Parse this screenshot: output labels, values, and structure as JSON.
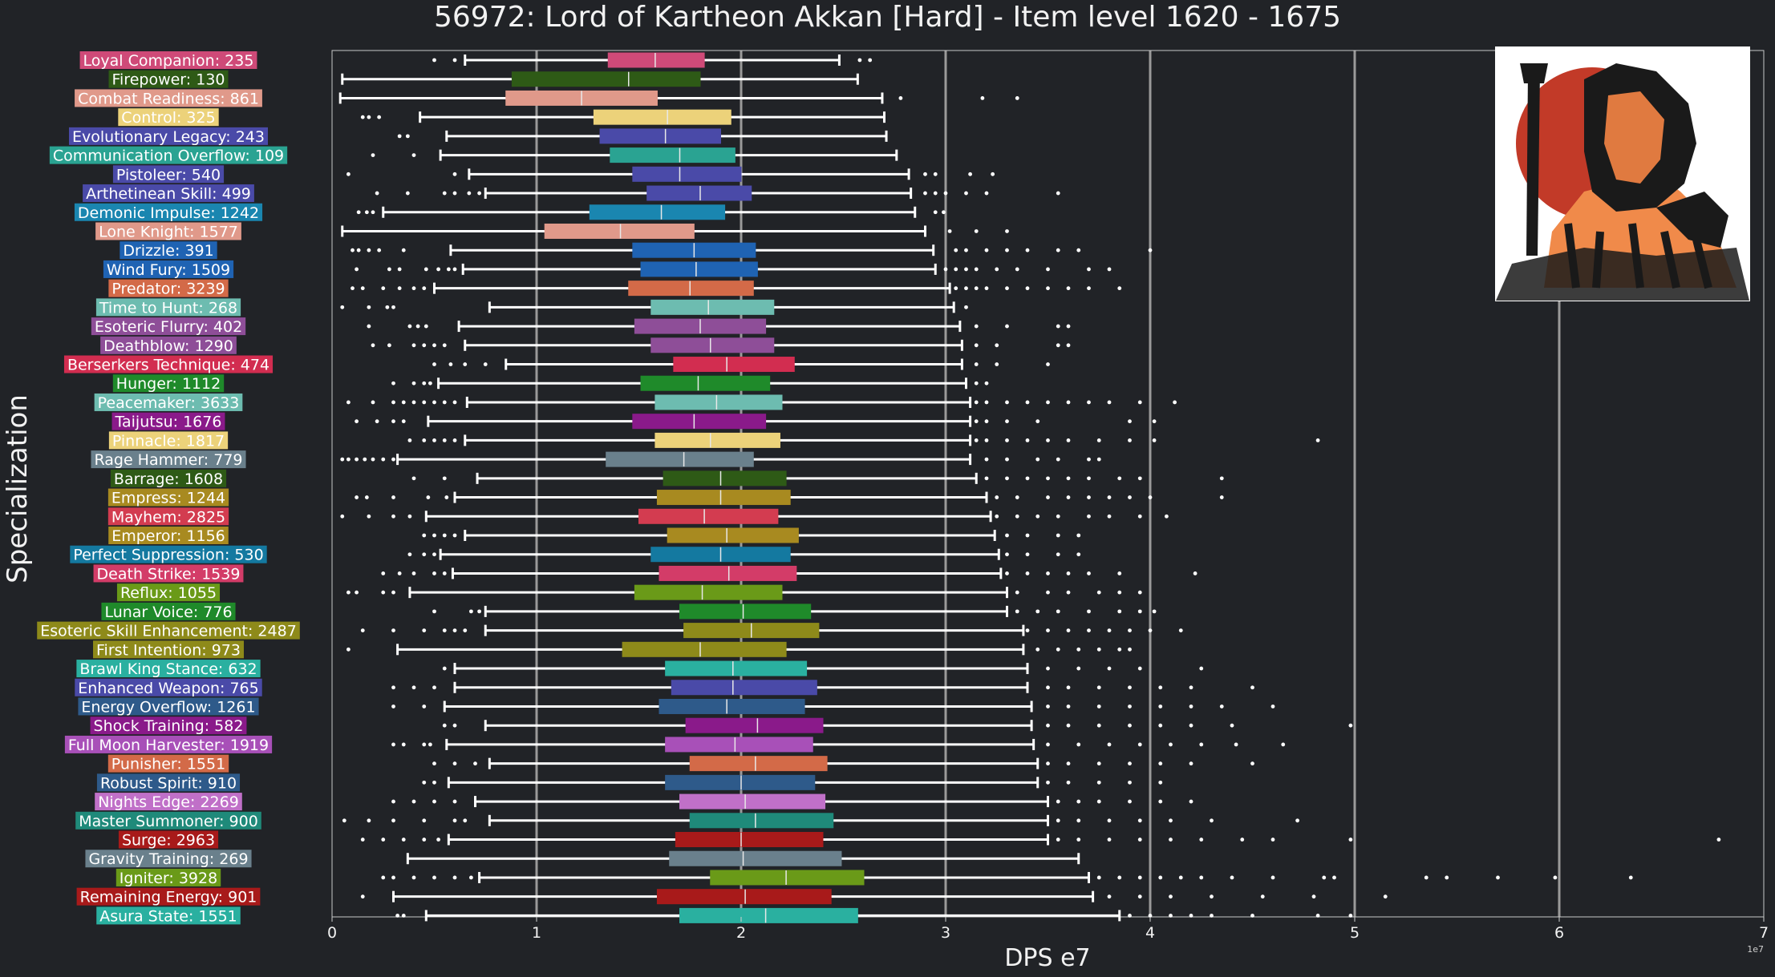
{
  "chart_data": {
    "type": "box",
    "title": "56972: Lord of Kartheon Akkan [Hard] - Item level 1620 - 1675",
    "xlabel": "DPS e7",
    "ylabel": "Specialization",
    "x_scale_note": "1e7",
    "xlim": [
      0,
      7
    ],
    "xticks": [
      "0",
      "1",
      "2",
      "3",
      "4",
      "5",
      "6",
      "7"
    ],
    "grid": "vertical",
    "series": [
      {
        "name": "Loyal Companion: 235",
        "color": "#cf4a78",
        "whislo": 0.65,
        "q1": 1.35,
        "median": 1.58,
        "q3": 1.82,
        "whishi": 2.48,
        "outliers": [
          0.5,
          0.6,
          2.58,
          2.63
        ]
      },
      {
        "name": "Firepower: 130",
        "color": "#2e5a16",
        "whislo": 0.05,
        "q1": 0.88,
        "median": 1.45,
        "q3": 1.8,
        "whishi": 2.57,
        "outliers": []
      },
      {
        "name": "Combat Readiness: 861",
        "color": "#e0998a",
        "whislo": 0.04,
        "q1": 0.85,
        "median": 1.22,
        "q3": 1.59,
        "whishi": 2.69,
        "outliers": [
          2.78,
          3.18,
          3.35
        ]
      },
      {
        "name": "Control: 325",
        "color": "#ecd27a",
        "whislo": 0.43,
        "q1": 1.28,
        "median": 1.64,
        "q3": 1.95,
        "whishi": 2.7,
        "outliers": [
          0.15,
          0.18,
          0.23
        ]
      },
      {
        "name": "Evolutionary Legacy: 243",
        "color": "#4a4aa8",
        "whislo": 0.56,
        "q1": 1.31,
        "median": 1.63,
        "q3": 1.9,
        "whishi": 2.71,
        "outliers": [
          0.33,
          0.37
        ]
      },
      {
        "name": "Communication Overflow: 109",
        "color": "#2aa392",
        "whislo": 0.53,
        "q1": 1.36,
        "median": 1.7,
        "q3": 1.97,
        "whishi": 2.76,
        "outliers": [
          0.2,
          0.4
        ]
      },
      {
        "name": "Pistoleer: 540",
        "color": "#4a4aa8",
        "whislo": 0.67,
        "q1": 1.47,
        "median": 1.7,
        "q3": 2.0,
        "whishi": 2.82,
        "outliers": [
          0.08,
          0.6,
          2.9,
          2.95,
          3.12,
          3.23
        ]
      },
      {
        "name": "Arthetinean Skill: 499",
        "color": "#4a4aa8",
        "whislo": 0.75,
        "q1": 1.54,
        "median": 1.8,
        "q3": 2.05,
        "whishi": 2.83,
        "outliers": [
          0.22,
          0.37,
          0.55,
          0.6,
          0.67,
          0.72,
          2.9,
          2.95,
          3.0,
          3.1,
          3.2,
          3.55
        ]
      },
      {
        "name": "Demonic Impulse: 1242",
        "color": "#1a86b0",
        "whislo": 0.25,
        "q1": 1.26,
        "median": 1.61,
        "q3": 1.92,
        "whishi": 2.85,
        "outliers": [
          0.13,
          0.17,
          0.2,
          2.95,
          2.99
        ]
      },
      {
        "name": "Lone Knight: 1577",
        "color": "#e0998a",
        "whislo": 0.05,
        "q1": 1.04,
        "median": 1.41,
        "q3": 1.77,
        "whishi": 2.9,
        "outliers": [
          3.02,
          3.15,
          3.3
        ]
      },
      {
        "name": "Drizzle: 391",
        "color": "#1f63b3",
        "whislo": 0.58,
        "q1": 1.47,
        "median": 1.77,
        "q3": 2.07,
        "whishi": 2.94,
        "outliers": [
          0.1,
          0.13,
          0.18,
          0.23,
          0.35,
          3.05,
          3.1,
          3.2,
          3.3,
          3.4,
          3.55,
          3.65,
          4.0
        ]
      },
      {
        "name": "Wind Fury: 1509",
        "color": "#1f63b3",
        "whislo": 0.64,
        "q1": 1.51,
        "median": 1.78,
        "q3": 2.08,
        "whishi": 2.95,
        "outliers": [
          0.12,
          0.28,
          0.33,
          0.46,
          0.52,
          0.57,
          0.6,
          3.0,
          3.05,
          3.1,
          3.15,
          3.25,
          3.35,
          3.5,
          3.7,
          3.8
        ]
      },
      {
        "name": "Predator: 3239",
        "color": "#d36a48",
        "whislo": 0.5,
        "q1": 1.45,
        "median": 1.75,
        "q3": 2.06,
        "whishi": 3.02,
        "outliers": [
          0.1,
          0.15,
          0.25,
          0.33,
          0.4,
          0.45,
          3.05,
          3.1,
          3.15,
          3.2,
          3.3,
          3.4,
          3.5,
          3.6,
          3.7,
          3.85
        ]
      },
      {
        "name": "Time to Hunt: 268",
        "color": "#6dbcb0",
        "whislo": 0.77,
        "q1": 1.56,
        "median": 1.84,
        "q3": 2.16,
        "whishi": 3.04,
        "outliers": [
          0.05,
          0.18,
          0.27,
          0.3,
          3.1
        ]
      },
      {
        "name": "Esoteric Flurry: 402",
        "color": "#8e4e98",
        "whislo": 0.62,
        "q1": 1.48,
        "median": 1.8,
        "q3": 2.12,
        "whishi": 3.07,
        "outliers": [
          0.18,
          0.38,
          0.42,
          0.46,
          3.15,
          3.3,
          3.55,
          3.6
        ]
      },
      {
        "name": "Deathblow: 1290",
        "color": "#8e4e98",
        "whislo": 0.65,
        "q1": 1.56,
        "median": 1.85,
        "q3": 2.16,
        "whishi": 3.08,
        "outliers": [
          0.2,
          0.28,
          0.4,
          0.45,
          0.5,
          0.55,
          3.15,
          3.25,
          3.55,
          3.6
        ]
      },
      {
        "name": "Berserkers Technique: 474",
        "color": "#d22d50",
        "whislo": 0.85,
        "q1": 1.67,
        "median": 1.93,
        "q3": 2.26,
        "whishi": 3.08,
        "outliers": [
          0.5,
          0.58,
          0.65,
          0.75,
          3.15,
          3.25,
          3.5
        ]
      },
      {
        "name": "Hunger: 1112",
        "color": "#1f8a2a",
        "whislo": 0.52,
        "q1": 1.51,
        "median": 1.79,
        "q3": 2.14,
        "whishi": 3.1,
        "outliers": [
          0.3,
          0.4,
          0.45,
          0.48,
          3.15,
          3.2
        ]
      },
      {
        "name": "Peacemaker: 3633",
        "color": "#6dbcb0",
        "whislo": 0.66,
        "q1": 1.58,
        "median": 1.88,
        "q3": 2.2,
        "whishi": 3.12,
        "outliers": [
          0.08,
          0.2,
          0.3,
          0.35,
          0.4,
          0.45,
          0.5,
          0.55,
          0.6,
          3.15,
          3.2,
          3.3,
          3.4,
          3.5,
          3.6,
          3.7,
          3.8,
          3.95,
          4.12
        ]
      },
      {
        "name": "Taijutsu: 1676",
        "color": "#8a1a8a",
        "whislo": 0.47,
        "q1": 1.47,
        "median": 1.77,
        "q3": 2.12,
        "whishi": 3.12,
        "outliers": [
          0.12,
          0.22,
          0.3,
          0.35,
          3.15,
          3.2,
          3.3,
          3.45,
          3.9,
          4.02
        ]
      },
      {
        "name": "Pinnacle: 1817",
        "color": "#ecd27a",
        "whislo": 0.65,
        "q1": 1.58,
        "median": 1.85,
        "q3": 2.19,
        "whishi": 3.12,
        "outliers": [
          0.38,
          0.45,
          0.5,
          0.55,
          0.6,
          3.15,
          3.2,
          3.3,
          3.4,
          3.5,
          3.6,
          3.75,
          3.9,
          4.02,
          4.82
        ]
      },
      {
        "name": "Rage Hammer: 779",
        "color": "#6a808c",
        "whislo": 0.32,
        "q1": 1.34,
        "median": 1.72,
        "q3": 2.06,
        "whishi": 3.12,
        "outliers": [
          0.05,
          0.08,
          0.12,
          0.16,
          0.2,
          0.25,
          0.3,
          3.2,
          3.3,
          3.45,
          3.55,
          3.7,
          3.75
        ]
      },
      {
        "name": "Barrage: 1608",
        "color": "#2e5a16",
        "whislo": 0.71,
        "q1": 1.62,
        "median": 1.9,
        "q3": 2.22,
        "whishi": 3.15,
        "outliers": [
          0.4,
          0.55,
          3.2,
          3.3,
          3.4,
          3.5,
          3.6,
          3.7,
          3.85,
          3.95,
          4.35
        ]
      },
      {
        "name": "Empress: 1244",
        "color": "#a88a20",
        "whislo": 0.6,
        "q1": 1.59,
        "median": 1.9,
        "q3": 2.24,
        "whishi": 3.2,
        "outliers": [
          0.12,
          0.17,
          0.3,
          0.47,
          0.56,
          3.25,
          3.35,
          3.5,
          3.6,
          3.7,
          3.8,
          3.9,
          4.0,
          4.35
        ]
      },
      {
        "name": "Mayhem: 2825",
        "color": "#d33c50",
        "whislo": 0.46,
        "q1": 1.5,
        "median": 1.82,
        "q3": 2.18,
        "whishi": 3.22,
        "outliers": [
          0.05,
          0.18,
          0.3,
          0.38,
          3.25,
          3.35,
          3.45,
          3.55,
          3.7,
          3.8,
          3.95,
          4.08
        ]
      },
      {
        "name": "Emperor: 1156",
        "color": "#a88a20",
        "whislo": 0.65,
        "q1": 1.64,
        "median": 1.93,
        "q3": 2.28,
        "whishi": 3.24,
        "outliers": [
          0.45,
          0.5,
          0.55,
          0.6,
          3.3,
          3.4,
          3.55,
          3.65
        ]
      },
      {
        "name": "Perfect Suppression: 530",
        "color": "#1479a0",
        "whislo": 0.53,
        "q1": 1.56,
        "median": 1.9,
        "q3": 2.24,
        "whishi": 3.26,
        "outliers": [
          0.38,
          0.45,
          0.5,
          3.3,
          3.4,
          3.55,
          3.65
        ]
      },
      {
        "name": "Death Strike: 1539",
        "color": "#d33c68",
        "whislo": 0.59,
        "q1": 1.6,
        "median": 1.94,
        "q3": 2.27,
        "whishi": 3.27,
        "outliers": [
          0.25,
          0.33,
          0.4,
          0.5,
          0.55,
          3.3,
          3.4,
          3.5,
          3.6,
          3.7,
          3.85,
          4.22
        ]
      },
      {
        "name": "Reflux: 1055",
        "color": "#6a9a18",
        "whislo": 0.38,
        "q1": 1.48,
        "median": 1.81,
        "q3": 2.2,
        "whishi": 3.3,
        "outliers": [
          0.08,
          0.12,
          0.25,
          0.3,
          3.35,
          3.5,
          3.6,
          3.75,
          3.85,
          3.95
        ]
      },
      {
        "name": "Lunar Voice: 776",
        "color": "#1f8a2a",
        "whislo": 0.75,
        "q1": 1.7,
        "median": 2.01,
        "q3": 2.34,
        "whishi": 3.3,
        "outliers": [
          0.5,
          0.68,
          0.72,
          3.35,
          3.45,
          3.55,
          3.7,
          3.85,
          3.95,
          4.02
        ]
      },
      {
        "name": "Esoteric Skill Enhancement: 2487",
        "color": "#8e8a1a",
        "whislo": 0.75,
        "q1": 1.72,
        "median": 2.05,
        "q3": 2.38,
        "whishi": 3.38,
        "outliers": [
          0.15,
          0.3,
          0.45,
          0.55,
          0.6,
          0.65,
          3.4,
          3.5,
          3.6,
          3.7,
          3.8,
          3.9,
          4.0,
          4.15
        ]
      },
      {
        "name": "First Intention: 973",
        "color": "#8e8a1a",
        "whislo": 0.32,
        "q1": 1.42,
        "median": 1.8,
        "q3": 2.22,
        "whishi": 3.38,
        "outliers": [
          0.08,
          3.45,
          3.55,
          3.65,
          3.75,
          3.85,
          3.9
        ]
      },
      {
        "name": "Brawl King Stance: 632",
        "color": "#2ab0a0",
        "whislo": 0.6,
        "q1": 1.63,
        "median": 1.96,
        "q3": 2.32,
        "whishi": 3.4,
        "outliers": [
          0.55,
          3.5,
          3.65,
          3.8,
          3.95,
          4.25
        ]
      },
      {
        "name": "Enhanced Weapon: 765",
        "color": "#4a4aa8",
        "whislo": 0.6,
        "q1": 1.66,
        "median": 1.96,
        "q3": 2.37,
        "whishi": 3.4,
        "outliers": [
          0.3,
          0.4,
          0.5,
          3.5,
          3.6,
          3.75,
          3.9,
          4.05,
          4.2,
          4.5
        ]
      },
      {
        "name": "Energy Overflow: 1261",
        "color": "#2e5a8a",
        "whislo": 0.55,
        "q1": 1.6,
        "median": 1.93,
        "q3": 2.31,
        "whishi": 3.42,
        "outliers": [
          0.3,
          0.45,
          3.5,
          3.6,
          3.75,
          3.9,
          4.05,
          4.2,
          4.35,
          4.6
        ]
      },
      {
        "name": "Shock Training: 582",
        "color": "#8a1a8a",
        "whislo": 0.75,
        "q1": 1.73,
        "median": 2.08,
        "q3": 2.4,
        "whishi": 3.42,
        "outliers": [
          0.55,
          0.6,
          3.5,
          3.6,
          3.75,
          3.9,
          4.05,
          4.2,
          4.4,
          4.98
        ]
      },
      {
        "name": "Full Moon Harvester: 1919",
        "color": "#a850b8",
        "whislo": 0.56,
        "q1": 1.63,
        "median": 1.97,
        "q3": 2.35,
        "whishi": 3.43,
        "outliers": [
          0.3,
          0.35,
          0.45,
          0.48,
          3.5,
          3.65,
          3.8,
          3.95,
          4.1,
          4.25,
          4.42,
          4.65
        ]
      },
      {
        "name": "Punisher: 1551",
        "color": "#d36a48",
        "whislo": 0.77,
        "q1": 1.75,
        "median": 2.07,
        "q3": 2.42,
        "whishi": 3.45,
        "outliers": [
          0.5,
          0.6,
          0.7,
          3.5,
          3.6,
          3.75,
          3.9,
          4.05,
          4.2,
          4.5
        ]
      },
      {
        "name": "Robust Spirit: 910",
        "color": "#2e5a8a",
        "whislo": 0.57,
        "q1": 1.63,
        "median": 2.0,
        "q3": 2.36,
        "whishi": 3.45,
        "outliers": [
          0.45,
          0.5,
          3.5,
          3.6,
          3.75,
          3.9,
          4.05
        ]
      },
      {
        "name": "Nights Edge: 2269",
        "color": "#c070c8",
        "whislo": 0.7,
        "q1": 1.7,
        "median": 2.02,
        "q3": 2.41,
        "whishi": 3.5,
        "outliers": [
          0.3,
          0.4,
          0.5,
          0.6,
          3.55,
          3.65,
          3.75,
          3.9,
          4.05,
          4.2
        ]
      },
      {
        "name": "Master Summoner: 900",
        "color": "#1f8a7a",
        "whislo": 0.77,
        "q1": 1.75,
        "median": 2.07,
        "q3": 2.45,
        "whishi": 3.5,
        "outliers": [
          0.06,
          0.18,
          0.3,
          0.45,
          0.6,
          0.65,
          3.55,
          3.65,
          3.8,
          3.95,
          4.1,
          4.3,
          4.72
        ]
      },
      {
        "name": "Surge: 2963",
        "color": "#a81a1a",
        "whislo": 0.57,
        "q1": 1.68,
        "median": 2.0,
        "q3": 2.4,
        "whishi": 3.5,
        "outliers": [
          0.15,
          0.25,
          0.35,
          0.45,
          0.52,
          3.55,
          3.65,
          3.8,
          3.95,
          4.1,
          4.25,
          4.45,
          4.6,
          4.98,
          6.78
        ]
      },
      {
        "name": "Gravity Training: 269",
        "color": "#6a808c",
        "whislo": 0.37,
        "q1": 1.65,
        "median": 2.01,
        "q3": 2.49,
        "whishi": 3.65,
        "outliers": []
      },
      {
        "name": "Igniter: 3928",
        "color": "#6a9a18",
        "whislo": 0.72,
        "q1": 1.85,
        "median": 2.22,
        "q3": 2.6,
        "whishi": 3.7,
        "outliers": [
          0.25,
          0.3,
          0.4,
          0.5,
          0.6,
          0.68,
          3.75,
          3.85,
          3.95,
          4.05,
          4.15,
          4.25,
          4.4,
          4.6,
          4.85,
          4.9,
          5.35,
          5.45,
          5.7,
          5.98,
          6.35
        ]
      },
      {
        "name": "Remaining Energy: 901",
        "color": "#a81a1a",
        "whislo": 0.3,
        "q1": 1.59,
        "median": 2.02,
        "q3": 2.44,
        "whishi": 3.72,
        "outliers": [
          0.15,
          3.8,
          3.95,
          4.1,
          4.3,
          4.55,
          4.8,
          5.15
        ]
      },
      {
        "name": "Asura State: 1551",
        "color": "#2ab0a0",
        "whislo": 0.46,
        "q1": 1.7,
        "median": 2.12,
        "q3": 2.57,
        "whishi": 3.85,
        "outliers": [
          0.32,
          0.35,
          3.9,
          4.0,
          4.1,
          4.2,
          4.3,
          4.5,
          4.82,
          4.98
        ]
      }
    ]
  }
}
